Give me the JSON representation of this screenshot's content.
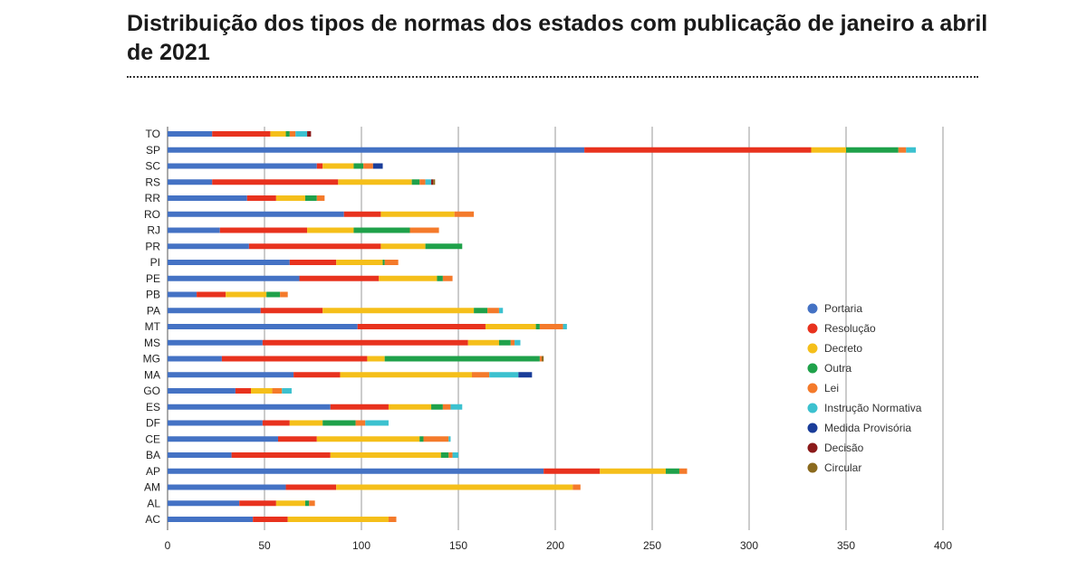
{
  "title": "Distribuição dos tipos de normas dos estados com publicação de janeiro a abril de 2021",
  "chart_data": {
    "type": "bar",
    "orientation": "horizontal",
    "stacked": true,
    "title": "Distribuição dos tipos de normas dos estados com publicação de janeiro a abril de 2021",
    "xlabel": "",
    "ylabel": "",
    "xlim": [
      0,
      400
    ],
    "xticks": [
      0,
      50,
      100,
      150,
      200,
      250,
      300,
      350,
      400
    ],
    "grid": true,
    "legend_position": "right",
    "categories": [
      "TO",
      "SP",
      "SC",
      "RS",
      "RR",
      "RO",
      "RJ",
      "PR",
      "PI",
      "PE",
      "PB",
      "PA",
      "MT",
      "MS",
      "MG",
      "MA",
      "GO",
      "ES",
      "DF",
      "CE",
      "BA",
      "AP",
      "AM",
      "AL",
      "AC"
    ],
    "series": [
      {
        "name": "Portaria",
        "color": "#4472c4",
        "values": [
          23,
          215,
          77,
          23,
          41,
          91,
          27,
          42,
          63,
          68,
          15,
          48,
          98,
          49,
          28,
          65,
          35,
          84,
          49,
          57,
          33,
          194,
          61,
          37,
          44
        ]
      },
      {
        "name": "Resolução",
        "color": "#e8321e",
        "values": [
          30,
          117,
          3,
          65,
          15,
          19,
          45,
          68,
          24,
          41,
          15,
          32,
          66,
          106,
          75,
          24,
          8,
          30,
          14,
          20,
          51,
          29,
          26,
          19,
          18
        ]
      },
      {
        "name": "Decreto",
        "color": "#f5bf1a",
        "values": [
          8,
          18,
          16,
          38,
          15,
          38,
          24,
          23,
          24,
          30,
          21,
          78,
          26,
          16,
          9,
          68,
          11,
          22,
          17,
          53,
          57,
          34,
          122,
          15,
          52
        ]
      },
      {
        "name": "Outra",
        "color": "#1fa14a",
        "values": [
          2,
          27,
          5,
          4,
          6,
          0,
          29,
          19,
          1,
          3,
          7,
          7,
          2,
          6,
          80,
          0,
          0,
          6,
          17,
          2,
          4,
          7,
          0,
          2,
          0
        ]
      },
      {
        "name": "Lei",
        "color": "#f47a2b",
        "values": [
          3,
          4,
          5,
          3,
          4,
          10,
          15,
          0,
          7,
          5,
          4,
          6,
          12,
          2,
          1,
          9,
          5,
          4,
          5,
          13,
          2,
          4,
          4,
          3,
          4
        ]
      },
      {
        "name": "Instrução Normativa",
        "color": "#3cc1cf",
        "values": [
          6,
          5,
          0,
          3,
          0,
          0,
          0,
          0,
          0,
          0,
          0,
          2,
          2,
          3,
          0,
          15,
          5,
          6,
          12,
          1,
          3,
          0,
          0,
          0,
          0
        ]
      },
      {
        "name": "Medida Provisória",
        "color": "#1a3d99",
        "values": [
          0,
          0,
          5,
          0,
          0,
          0,
          0,
          0,
          0,
          0,
          0,
          0,
          0,
          0,
          0,
          7,
          0,
          0,
          0,
          0,
          0,
          0,
          0,
          0,
          0
        ]
      },
      {
        "name": "Decisão",
        "color": "#8b1a1a",
        "values": [
          2,
          0,
          0,
          1,
          0,
          0,
          0,
          0,
          0,
          0,
          0,
          0,
          0,
          0,
          0,
          0,
          0,
          0,
          0,
          0,
          0,
          0,
          0,
          0,
          0
        ]
      },
      {
        "name": "Circular",
        "color": "#8b6a1e",
        "values": [
          0,
          0,
          0,
          1,
          0,
          0,
          0,
          0,
          0,
          0,
          0,
          0,
          0,
          0,
          1,
          0,
          0,
          0,
          0,
          0,
          0,
          0,
          0,
          0,
          0
        ]
      }
    ]
  }
}
